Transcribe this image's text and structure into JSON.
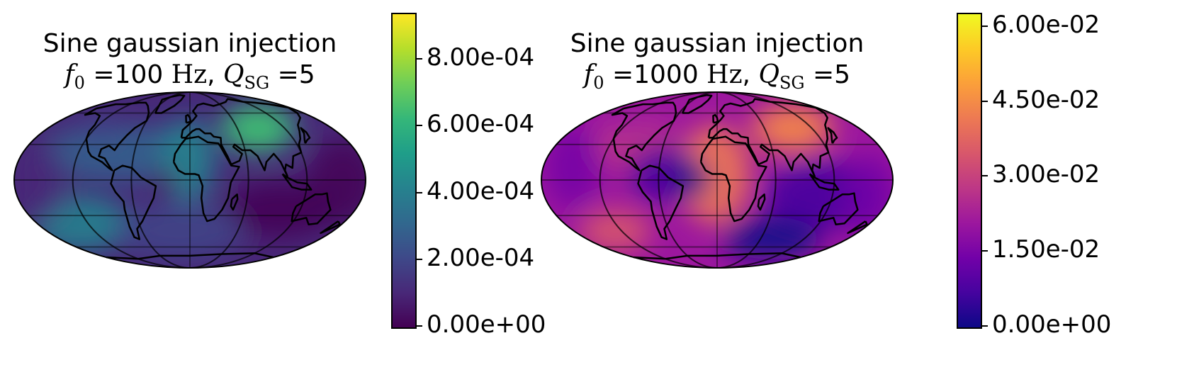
{
  "panels": [
    {
      "title_line1": "Sine gaussian injection",
      "title_f0_symbol": "f",
      "title_f0_sub": "0",
      "title_eq1": " =100 ",
      "title_unit": "Hz",
      "title_sep": ", ",
      "title_q_symbol": "Q",
      "title_q_sub": "SG",
      "title_eq2": " =5",
      "colormap": "viridis",
      "colorbar": {
        "min": 0,
        "max": 0.00093,
        "tick_values": [
          0,
          0.0002,
          0.0004,
          0.0006,
          0.0008
        ],
        "tick_labels": [
          "0.00e+00",
          "2.00e-04",
          "4.00e-04",
          "6.00e-04",
          "8.00e-04"
        ]
      }
    },
    {
      "title_line1": "Sine gaussian injection",
      "title_f0_symbol": "f",
      "title_f0_sub": "0",
      "title_eq1": " =1000 ",
      "title_unit": "Hz",
      "title_sep": ", ",
      "title_q_symbol": "Q",
      "title_q_sub": "SG",
      "title_eq2": " =5",
      "colormap": "plasma",
      "colorbar": {
        "min": 0,
        "max": 0.0621,
        "tick_values": [
          0,
          0.015,
          0.03,
          0.045,
          0.06
        ],
        "tick_labels": [
          "0.00e+00",
          "1.50e-02",
          "3.00e-02",
          "4.50e-02",
          "6.00e-02"
        ]
      }
    }
  ],
  "projection": "mollweide",
  "colors": {
    "viridis": [
      "#440154",
      "#482878",
      "#3e4989",
      "#31688e",
      "#26828e",
      "#1f9e89",
      "#35b779",
      "#6ece58",
      "#b5de2b",
      "#fde725"
    ],
    "plasma": [
      "#0d0887",
      "#46039f",
      "#7201a8",
      "#9c179e",
      "#bd3786",
      "#d8576b",
      "#ed7953",
      "#fb9f3a",
      "#fdca26",
      "#f0f921"
    ]
  }
}
